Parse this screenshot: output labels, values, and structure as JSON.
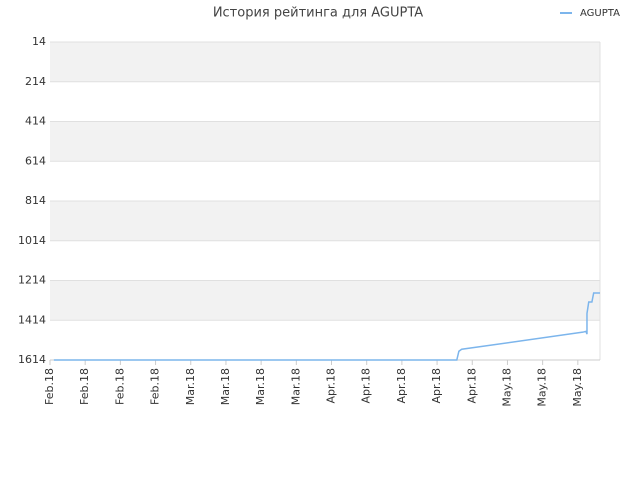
{
  "chart_data": {
    "type": "line",
    "title": "История рейтинга для AGUPTA",
    "series": [
      {
        "name": "AGUPTA",
        "color": "#7cb5ec",
        "x": [
          0.11,
          11.56,
          11.62,
          11.7,
          15.14,
          15.23,
          15.26,
          15.26,
          15.31,
          15.4,
          15.45,
          15.63
        ],
        "values": [
          1614,
          1614,
          1570,
          1560,
          1474,
          1470,
          1484,
          1380,
          1322,
          1322,
          1277,
          1277
        ]
      }
    ],
    "ylim": [
      1614,
      14
    ],
    "yticks": [
      14,
      214,
      414,
      614,
      814,
      1014,
      1214,
      1414,
      1614
    ],
    "xlim": [
      0,
      15.63
    ],
    "xticks": [
      {
        "value": 0,
        "label": "Feb.18"
      },
      {
        "value": 1,
        "label": "Feb.18"
      },
      {
        "value": 2,
        "label": "Feb.18"
      },
      {
        "value": 3,
        "label": "Feb.18"
      },
      {
        "value": 4,
        "label": "Mar.18"
      },
      {
        "value": 5,
        "label": "Mar.18"
      },
      {
        "value": 6,
        "label": "Mar.18"
      },
      {
        "value": 7,
        "label": "Mar.18"
      },
      {
        "value": 8,
        "label": "Apr.18"
      },
      {
        "value": 9,
        "label": "Apr.18"
      },
      {
        "value": 10,
        "label": "Apr.18"
      },
      {
        "value": 11,
        "label": "Apr.18"
      },
      {
        "value": 12,
        "label": "Apr.18"
      },
      {
        "value": 13,
        "label": "May.18"
      },
      {
        "value": 14,
        "label": "May.18"
      },
      {
        "value": 15,
        "label": "May.18"
      }
    ],
    "grid": true,
    "legend": "top-right",
    "band_color": "#f2f2f2"
  }
}
